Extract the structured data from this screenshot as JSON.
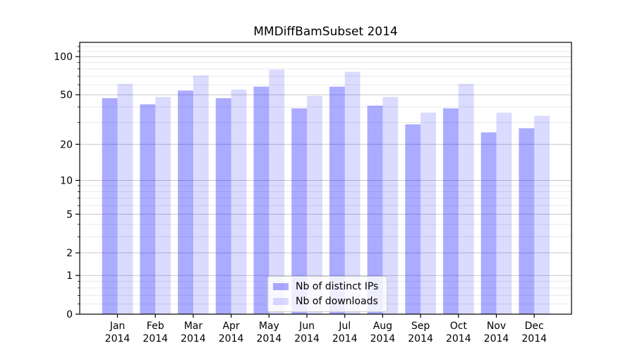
{
  "figure": {
    "title": "MMDiffBamSubset 2014"
  },
  "chart_data": {
    "type": "bar",
    "title": "MMDiffBamSubset 2014",
    "categories": [
      "Jan 2014",
      "Feb 2014",
      "Mar 2014",
      "Apr 2014",
      "May 2014",
      "Jun 2014",
      "Jul 2014",
      "Aug 2014",
      "Sep 2014",
      "Oct 2014",
      "Nov 2014",
      "Dec 2014"
    ],
    "months": [
      "Jan",
      "Feb",
      "Mar",
      "Apr",
      "May",
      "Jun",
      "Jul",
      "Aug",
      "Sep",
      "Oct",
      "Nov",
      "Dec"
    ],
    "year": "2014",
    "series": [
      {
        "name": "Nb of distinct IPs",
        "color": "rgba(0,0,255,0.33)",
        "values": [
          47,
          42,
          54,
          47,
          58,
          39,
          58,
          41,
          29,
          39,
          25,
          27
        ]
      },
      {
        "name": "Nb of downloads",
        "color": "rgba(0,0,255,0.14)",
        "values": [
          61,
          48,
          71,
          55,
          79,
          49,
          76,
          48,
          36,
          61,
          36,
          34
        ]
      }
    ],
    "xlabel": "",
    "ylabel": "",
    "yscale": "log-like (position ~ log10(value+1))",
    "y_major_ticks": [
      0,
      1,
      2,
      5,
      10,
      20,
      50,
      100
    ],
    "y_minor_ticks": [
      0.2,
      0.4,
      0.6,
      0.8,
      3,
      4,
      6,
      7,
      8,
      9,
      30,
      40,
      60,
      70,
      80,
      90,
      110,
      120
    ],
    "ylim": [
      0,
      128
    ],
    "grid": true,
    "legend_position": "lower center",
    "colors": {
      "bar_distinct_ips": "rgba(0,0,255,0.33)",
      "bar_downloads": "rgba(0,0,255,0.14)",
      "major_grid": "#c9c9c9",
      "minor_grid": "#e9e9e9",
      "spine": "#000000"
    }
  },
  "legend": {
    "items": [
      {
        "label": "Nb of distinct IPs",
        "color": "rgba(0,0,255,0.33)"
      },
      {
        "label": "Nb of downloads",
        "color": "rgba(0,0,255,0.14)"
      }
    ]
  }
}
